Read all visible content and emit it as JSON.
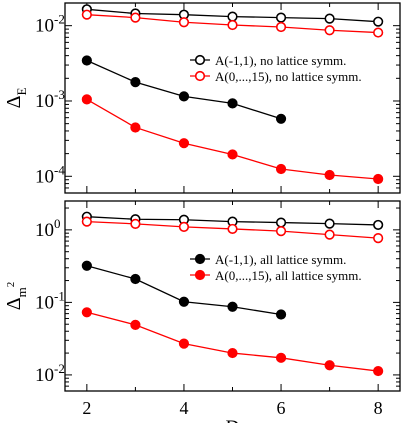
{
  "chart_data": [
    {
      "type": "line",
      "ylabel": "Δ",
      "ylabel_sub": "E",
      "yscale": "log",
      "ylim": [
        6e-05,
        0.02
      ],
      "xlim": [
        1.55,
        8.45
      ],
      "ytick_labels": [
        {
          "value": 0.01,
          "base": "10",
          "exp": "-2"
        },
        {
          "value": 0.001,
          "base": "10",
          "exp": "-3"
        },
        {
          "value": 0.0001,
          "base": "10",
          "exp": "-4"
        }
      ],
      "legend": {
        "placement": "center-right"
      },
      "series": [
        {
          "name": "A(-1,1), no lattice symm.",
          "color": "#000000",
          "marker": "open-circle",
          "x": [
            2,
            3,
            4,
            5,
            6,
            7,
            8
          ],
          "y": [
            0.0165,
            0.0145,
            0.014,
            0.0132,
            0.0128,
            0.0124,
            0.0113
          ]
        },
        {
          "name": "A(0,...,15), no lattice symm.",
          "color": "#ff0000",
          "marker": "open-circle",
          "x": [
            2,
            3,
            4,
            5,
            6,
            7,
            8
          ],
          "y": [
            0.014,
            0.0128,
            0.0111,
            0.0102,
            0.0096,
            0.0087,
            0.0081
          ]
        },
        {
          "name": "",
          "color": "#000000",
          "marker": "filled-circle",
          "x": [
            2,
            3,
            4,
            5,
            6
          ],
          "y": [
            0.00345,
            0.00178,
            0.00115,
            0.00093,
            0.00058
          ]
        },
        {
          "name": "",
          "color": "#ff0000",
          "marker": "filled-circle",
          "x": [
            2,
            3,
            4,
            5,
            6,
            7,
            8
          ],
          "y": [
            0.00105,
            0.000445,
            0.000275,
            0.000195,
            0.000125,
            0.000104,
            9.2e-05
          ]
        }
      ]
    },
    {
      "type": "line",
      "xlabel": "D",
      "ylabel": "Δ",
      "ylabel_sub": "m",
      "ylabel_sup": "2",
      "yscale": "log",
      "ylim": [
        0.006,
        2.5
      ],
      "xlim": [
        1.55,
        8.45
      ],
      "xticks": [
        2,
        4,
        6,
        8
      ],
      "xtick_labels": [
        "2",
        "4",
        "6",
        "8"
      ],
      "ytick_labels": [
        {
          "value": 1,
          "base": "10",
          "exp": "0"
        },
        {
          "value": 0.1,
          "base": "10",
          "exp": "-1"
        },
        {
          "value": 0.01,
          "base": "10",
          "exp": "-2"
        }
      ],
      "legend": {
        "placement": "center-right"
      },
      "series": [
        {
          "name": "",
          "color": "#000000",
          "marker": "open-circle",
          "x": [
            2,
            3,
            4,
            5,
            6,
            7,
            8
          ],
          "y": [
            1.52,
            1.4,
            1.38,
            1.3,
            1.26,
            1.22,
            1.17
          ]
        },
        {
          "name": "",
          "color": "#ff0000",
          "marker": "open-circle",
          "x": [
            2,
            3,
            4,
            5,
            6,
            7,
            8
          ],
          "y": [
            1.3,
            1.21,
            1.1,
            1.03,
            0.96,
            0.86,
            0.77
          ]
        },
        {
          "name": "A(-1,1), all lattice symm.",
          "color": "#000000",
          "marker": "filled-circle",
          "x": [
            2,
            3,
            4,
            5,
            6
          ],
          "y": [
            0.32,
            0.21,
            0.102,
            0.087,
            0.068
          ]
        },
        {
          "name": "A(0,...,15), all lattice symm.",
          "color": "#ff0000",
          "marker": "filled-circle",
          "x": [
            2,
            3,
            4,
            5,
            6,
            7,
            8
          ],
          "y": [
            0.073,
            0.049,
            0.027,
            0.02,
            0.0172,
            0.0136,
            0.0113
          ]
        }
      ]
    }
  ]
}
